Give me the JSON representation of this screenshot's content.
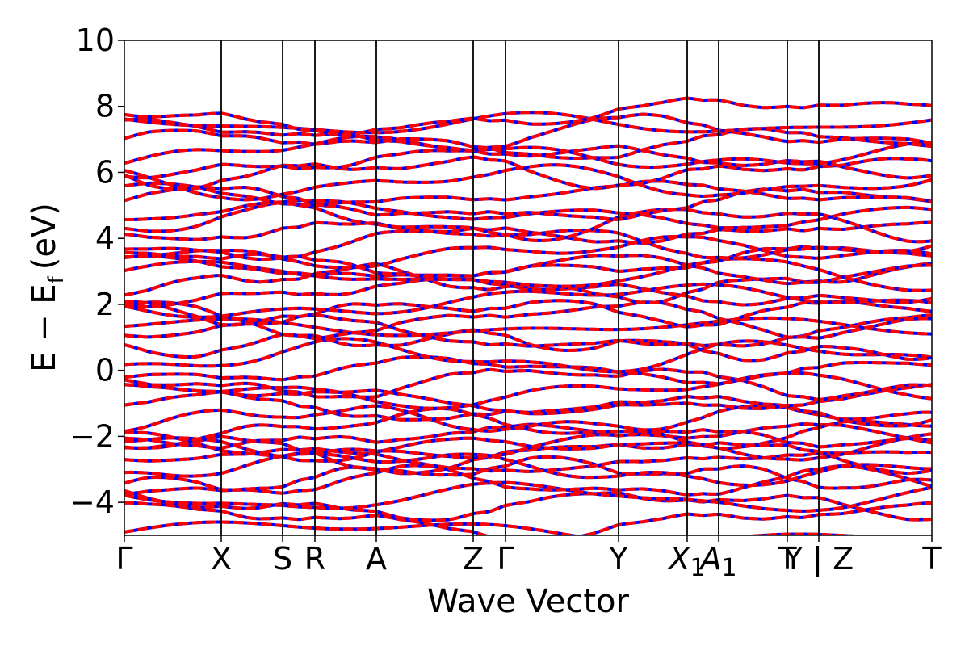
{
  "chart_data": {
    "type": "line",
    "title": "",
    "xlabel": "Wave Vector",
    "ylabel_main": "E − E",
    "ylabel_sub": "f",
    "ylabel_unit": "(eV)",
    "ylim": [
      -5,
      10
    ],
    "yticks": [
      -4,
      -2,
      0,
      2,
      4,
      6,
      8,
      10
    ],
    "ytick_labels": [
      "−4",
      "−2",
      "0",
      "2",
      "4",
      "6",
      "8",
      "10"
    ],
    "xlim": [
      0,
      1
    ],
    "high_symmetry_points": [
      {
        "label": "Γ",
        "sub": "",
        "x": 0.0
      },
      {
        "label": "X",
        "sub": "",
        "x": 0.12
      },
      {
        "label": "S",
        "sub": "",
        "x": 0.196
      },
      {
        "label": "R",
        "sub": "",
        "x": 0.236
      },
      {
        "label": "A",
        "sub": "",
        "x": 0.312
      },
      {
        "label": "Z",
        "sub": "",
        "x": 0.432
      },
      {
        "label": "Γ",
        "sub": "",
        "x": 0.472
      },
      {
        "label": "Y",
        "sub": "",
        "x": 0.612
      },
      {
        "label": "X",
        "sub": "1",
        "x": 0.697
      },
      {
        "label": "A",
        "sub": "1",
        "x": 0.736
      },
      {
        "label": "T",
        "sub": "",
        "x": 0.821
      },
      {
        "label": "Y | Z",
        "sub": "",
        "x": 0.86
      },
      {
        "label": "T",
        "sub": "",
        "x": 1.0
      }
    ],
    "grid": false,
    "legend": "none",
    "series": [
      {
        "style": "solid",
        "color": "#0000ff"
      },
      {
        "style": "dashed",
        "color": "#ff0000"
      }
    ],
    "band_baselines_eV": [
      -4.9,
      -4.6,
      -4.1,
      -3.85,
      -3.4,
      -3.15,
      -2.95,
      -2.75,
      -2.55,
      -2.35,
      -2.15,
      -1.95,
      -1.75,
      -1.5,
      -1.2,
      -0.9,
      -0.6,
      -0.3,
      0.05,
      0.4,
      0.7,
      1.05,
      1.3,
      1.6,
      1.85,
      2.1,
      2.35,
      2.6,
      2.85,
      3.1,
      3.35,
      3.6,
      3.85,
      4.15,
      4.45,
      4.75,
      5.05,
      5.35,
      5.7,
      6.0,
      6.3,
      6.6,
      6.9,
      7.2,
      7.45,
      7.7
    ]
  }
}
